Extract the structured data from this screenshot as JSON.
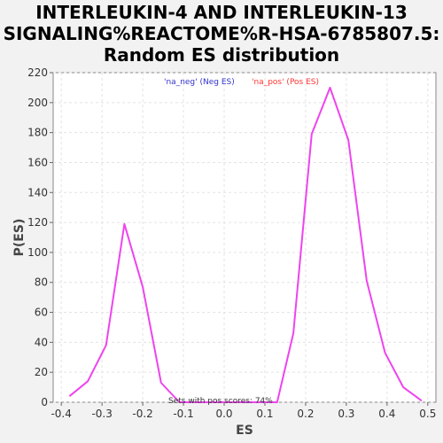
{
  "chart_data": {
    "type": "line",
    "title": [
      "INTERLEUKIN-4 AND INTERLEUKIN-13",
      "SIGNALING%REACTOME%R-HSA-6785807.5:",
      "Random ES distribution"
    ],
    "xlabel": "ES",
    "ylabel": "P(ES)",
    "xlim": [
      -0.42,
      0.52
    ],
    "ylim": [
      0,
      220
    ],
    "xticks": [
      -0.4,
      -0.3,
      -0.2,
      -0.1,
      0.0,
      0.1,
      0.2,
      0.3,
      0.4,
      0.5
    ],
    "xtick_labels": [
      "-0.4",
      "-0.3",
      "-0.2",
      "-0.1",
      "0.0",
      "0.1",
      "0.2",
      "0.3",
      "0.4",
      "0.5"
    ],
    "yticks": [
      0,
      20,
      40,
      60,
      80,
      100,
      120,
      140,
      160,
      180,
      200,
      220
    ],
    "grid": true,
    "legend": [
      {
        "name": "'na_neg' (Neg ES)",
        "color": "#3333cc"
      },
      {
        "name": "'na_pos' (Pos ES)",
        "color": "#ff3333"
      }
    ],
    "legend_placement": "top-center",
    "annotation": "Sets with pos scores: 74%",
    "series": [
      {
        "color": "#ee44ee",
        "points": [
          [
            -0.38,
            4
          ],
          [
            -0.335,
            14
          ],
          [
            -0.29,
            38
          ],
          [
            -0.245,
            119
          ],
          [
            -0.2,
            77
          ],
          [
            -0.155,
            13
          ],
          [
            -0.11,
            0
          ],
          [
            0.13,
            0
          ],
          [
            0.17,
            46
          ],
          [
            0.215,
            179
          ],
          [
            0.26,
            210
          ],
          [
            0.305,
            175
          ],
          [
            0.35,
            81
          ],
          [
            0.395,
            33
          ],
          [
            0.44,
            10
          ],
          [
            0.485,
            1
          ]
        ]
      }
    ]
  }
}
